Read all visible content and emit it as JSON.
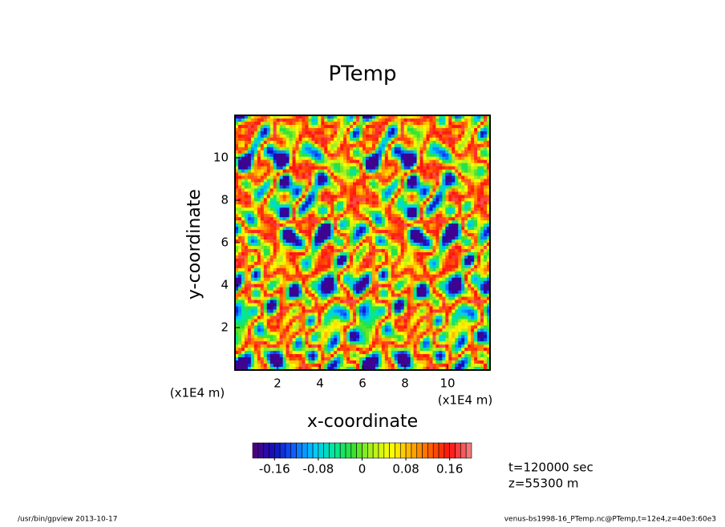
{
  "chart_data": {
    "type": "heatmap",
    "title": "PTemp",
    "x_label": "x-coordinate",
    "y_label": "y-coordinate",
    "x_unit": "(x1E4 m)",
    "y_unit": "(x1E4 m)",
    "xlim": [
      0,
      12
    ],
    "ylim": [
      0,
      12
    ],
    "xticks": [
      2,
      4,
      6,
      8,
      10
    ],
    "yticks": [
      2,
      4,
      6,
      8,
      10
    ],
    "colormap": [
      "#4b0082",
      "#1010c0",
      "#1060ff",
      "#00c8ff",
      "#00e8a0",
      "#30e030",
      "#b0f020",
      "#ffff00",
      "#ffb000",
      "#ff6000",
      "#ff1010",
      "#f07878"
    ],
    "colorbar_levels": 40,
    "clim": [
      -0.2,
      0.2
    ],
    "colorbar_ticks": [
      -0.16,
      -0.08,
      0,
      0.08,
      0.16
    ],
    "annotations": [
      "t=120000 sec",
      "z=55300 m"
    ],
    "footer_left": "/usr/bin/gpview   2013-10-17",
    "footer_right": "venus-bs1998-16_PTemp.nc@PTemp,t=12e4,z=40e3:60e3"
  }
}
